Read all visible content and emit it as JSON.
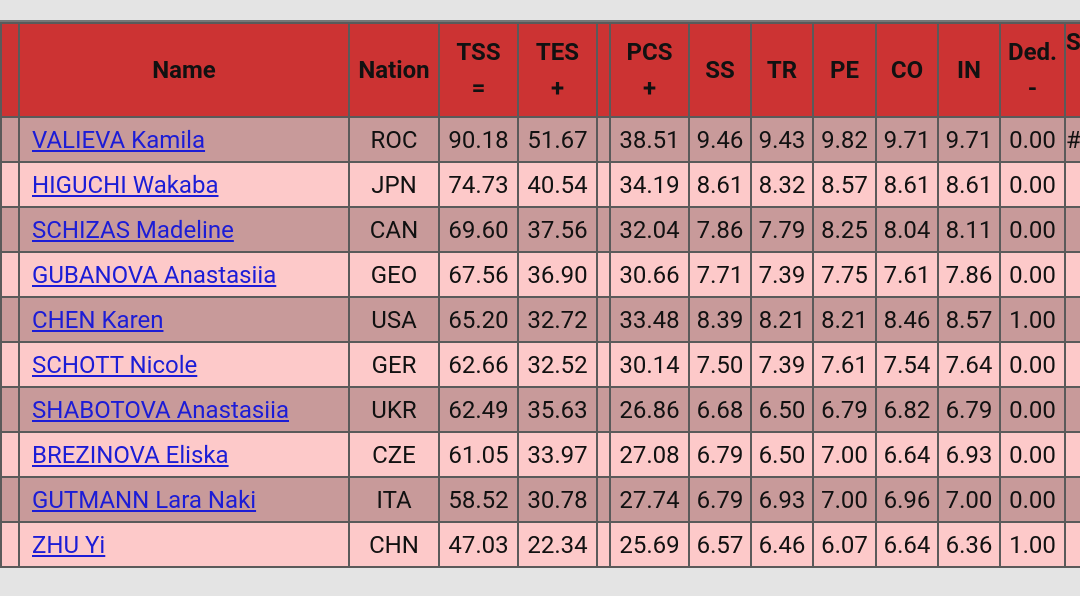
{
  "header": {
    "columns": [
      {
        "label": "Name"
      },
      {
        "label": "Nation"
      },
      {
        "label": "TSS",
        "sub": "="
      },
      {
        "label": "TES",
        "sub": "+"
      },
      {
        "label": "PCS",
        "sub": "+"
      },
      {
        "label": "SS"
      },
      {
        "label": "TR"
      },
      {
        "label": "PE"
      },
      {
        "label": "CO"
      },
      {
        "label": "IN"
      },
      {
        "label": "Ded.",
        "sub": "-"
      },
      {
        "label": "S"
      }
    ]
  },
  "table": {
    "rows": [
      {
        "cells": [
          "VALIEVA Kamila",
          "ROC",
          "90.18",
          "51.67",
          "38.51",
          "9.46",
          "9.43",
          "9.82",
          "9.71",
          "9.71",
          "0.00"
        ],
        "extra": "#"
      },
      {
        "cells": [
          "HIGUCHI Wakaba",
          "JPN",
          "74.73",
          "40.54",
          "34.19",
          "8.61",
          "8.32",
          "8.57",
          "8.61",
          "8.61",
          "0.00"
        ]
      },
      {
        "cells": [
          "SCHIZAS Madeline",
          "CAN",
          "69.60",
          "37.56",
          "32.04",
          "7.86",
          "7.79",
          "8.25",
          "8.04",
          "8.11",
          "0.00"
        ]
      },
      {
        "cells": [
          "GUBANOVA Anastasiia",
          "GEO",
          "67.56",
          "36.90",
          "30.66",
          "7.71",
          "7.39",
          "7.75",
          "7.61",
          "7.86",
          "0.00"
        ]
      },
      {
        "cells": [
          "CHEN Karen",
          "USA",
          "65.20",
          "32.72",
          "33.48",
          "8.39",
          "8.21",
          "8.21",
          "8.46",
          "8.57",
          "1.00"
        ]
      },
      {
        "cells": [
          "SCHOTT Nicole",
          "GER",
          "62.66",
          "32.52",
          "30.14",
          "7.50",
          "7.39",
          "7.61",
          "7.54",
          "7.64",
          "0.00"
        ]
      },
      {
        "cells": [
          "SHABOTOVA Anastasiia",
          "UKR",
          "62.49",
          "35.63",
          "26.86",
          "6.68",
          "6.50",
          "6.79",
          "6.82",
          "6.79",
          "0.00"
        ]
      },
      {
        "cells": [
          "BREZINOVA Eliska",
          "CZE",
          "61.05",
          "33.97",
          "27.08",
          "6.79",
          "6.50",
          "7.00",
          "6.64",
          "6.93",
          "0.00"
        ]
      },
      {
        "cells": [
          "GUTMANN Lara Naki",
          "ITA",
          "58.52",
          "30.78",
          "27.74",
          "6.79",
          "6.93",
          "7.00",
          "6.96",
          "7.00",
          "0.00"
        ]
      },
      {
        "cells": [
          "ZHU Yi",
          "CHN",
          "47.03",
          "22.34",
          "25.69",
          "6.57",
          "6.46",
          "6.07",
          "6.64",
          "6.36",
          "1.00"
        ]
      }
    ]
  }
}
